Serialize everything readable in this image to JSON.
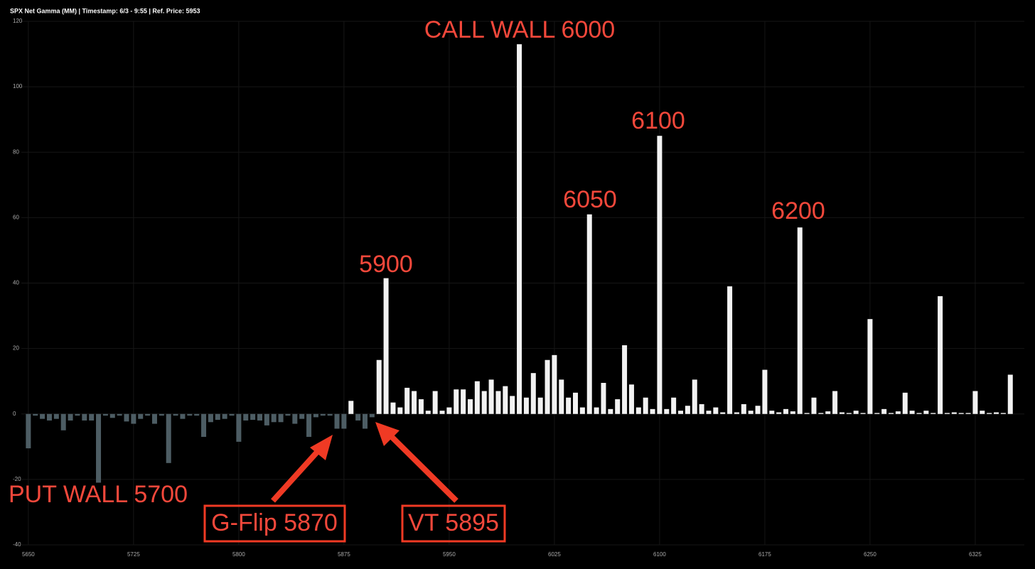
{
  "chart_data": {
    "type": "bar",
    "title": "SPX Net Gamma (MM) | Timestamp: 6/3 - 9:55  | Ref. Price: 5953",
    "x": [
      5650,
      5655,
      5660,
      5665,
      5670,
      5675,
      5680,
      5685,
      5690,
      5695,
      5700,
      5705,
      5710,
      5715,
      5720,
      5725,
      5730,
      5735,
      5740,
      5745,
      5750,
      5755,
      5760,
      5765,
      5770,
      5775,
      5780,
      5785,
      5790,
      5795,
      5800,
      5805,
      5810,
      5815,
      5820,
      5825,
      5830,
      5835,
      5840,
      5845,
      5850,
      5855,
      5860,
      5865,
      5870,
      5875,
      5880,
      5885,
      5890,
      5895,
      5900,
      5905,
      5910,
      5915,
      5920,
      5925,
      5930,
      5935,
      5940,
      5945,
      5950,
      5955,
      5960,
      5965,
      5970,
      5975,
      5980,
      5985,
      5990,
      5995,
      6000,
      6005,
      6010,
      6015,
      6020,
      6025,
      6030,
      6035,
      6040,
      6045,
      6050,
      6055,
      6060,
      6065,
      6070,
      6075,
      6080,
      6085,
      6090,
      6095,
      6100,
      6105,
      6110,
      6115,
      6120,
      6125,
      6130,
      6135,
      6140,
      6145,
      6150,
      6155,
      6160,
      6165,
      6170,
      6175,
      6180,
      6185,
      6190,
      6195,
      6200,
      6205,
      6210,
      6215,
      6220,
      6225,
      6230,
      6235,
      6240,
      6245,
      6250,
      6255,
      6260,
      6265,
      6270,
      6275,
      6280,
      6285,
      6290,
      6295,
      6300,
      6305,
      6310,
      6315,
      6320,
      6325,
      6330,
      6335,
      6340,
      6345,
      6350
    ],
    "values": [
      -10.5,
      -0.5,
      -1.5,
      -2,
      -1.5,
      -5,
      -2,
      -0.5,
      -2,
      -2,
      -21,
      -0.5,
      -1.2,
      -0.5,
      -2.3,
      -3,
      -1.5,
      -0.5,
      -3,
      -0.5,
      -15,
      -0.5,
      -1.5,
      -0.5,
      -0.5,
      -7,
      -2.5,
      -1.8,
      -1.5,
      -0.5,
      -8.5,
      -2,
      -1.8,
      -2,
      -3.5,
      -2.5,
      -2.5,
      -0.5,
      -3,
      -1.5,
      -7,
      -1,
      -0.5,
      -0.5,
      -4.5,
      -4.5,
      4,
      -2,
      -4.5,
      -1,
      16.5,
      41.5,
      3.5,
      2,
      8,
      7,
      4.5,
      1,
      7,
      1,
      2,
      7.5,
      7.5,
      4.5,
      10,
      7,
      10.5,
      7,
      8.5,
      5.5,
      113,
      5,
      12.5,
      5,
      16.5,
      18,
      10.5,
      5,
      6.5,
      2,
      61,
      2,
      9.5,
      1.5,
      4.5,
      21,
      9,
      2,
      5,
      1.5,
      85,
      1.5,
      5,
      1,
      2.5,
      10.5,
      3,
      1,
      2,
      0.5,
      39,
      0.5,
      3,
      1,
      2.5,
      13.5,
      1,
      0.5,
      1.5,
      0.8,
      57,
      0.3,
      5,
      0.3,
      0.8,
      7,
      0.5,
      0.3,
      1,
      0.3,
      29,
      0.3,
      1.5,
      0.3,
      0.8,
      6.5,
      1,
      0.3,
      1,
      0.3,
      36,
      0.3,
      0.5,
      0.3,
      0.3,
      7,
      1,
      0.3,
      0.5,
      0.3,
      12
    ],
    "positive_color": "#f2f2f2",
    "negative_color": "#4d5d64",
    "xlim": [
      5645,
      6360
    ],
    "xticks": [
      5650,
      5725,
      5800,
      5875,
      5950,
      6025,
      6100,
      6175,
      6250,
      6325
    ],
    "ylim": [
      -40,
      120
    ],
    "yticks": [
      -40,
      -20,
      0,
      20,
      40,
      60,
      80,
      100,
      120
    ],
    "grid": true,
    "annotations": [
      "CALL WALL 6000",
      "6100",
      "6050",
      "6200",
      "5900",
      "PUT WALL 5700",
      "G-Flip 5870",
      "VT 5895"
    ]
  }
}
